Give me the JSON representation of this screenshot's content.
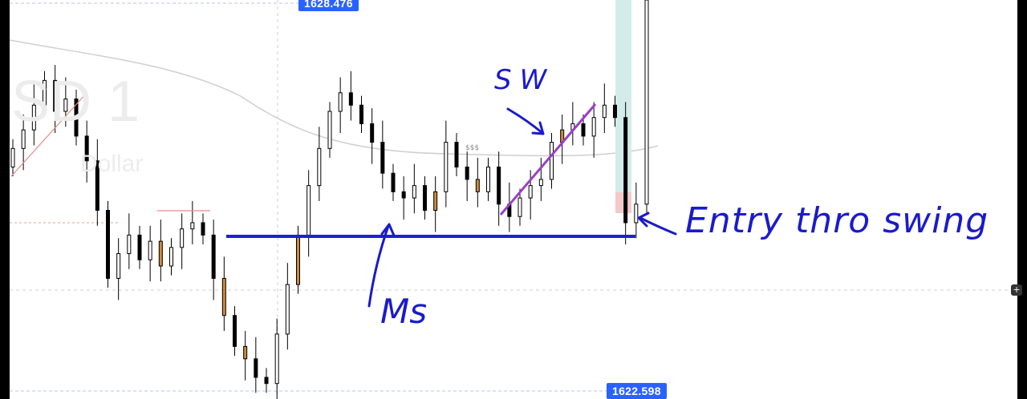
{
  "watermark": {
    "symbol": "SD 1",
    "subtitle": "Dollar"
  },
  "price_labels": {
    "top": "1628.476",
    "bottom": "1622.598"
  },
  "annotations": {
    "sw": "SW",
    "ms": "Ms",
    "entry": "Entry thro swing",
    "liquidity": "$$$"
  },
  "icons": {
    "scale_button": "crosshair-plus-icon"
  },
  "colors": {
    "bull": "#ffffff",
    "bear": "#000000",
    "highlight": "#d08a3a",
    "ms_line": "#1f1fd6",
    "sw_line": "#9b3ec8",
    "ma": "#cfcfcf",
    "ink": "#1a1acc"
  },
  "chart_data": {
    "type": "candlestick",
    "ylim": [
      1622.25,
      1628.7
    ],
    "levels": {
      "market_structure": 1624.88,
      "top_label": 1628.476,
      "bottom_label": 1622.598
    },
    "closes": [
      1626.3,
      1626.6,
      1627.0,
      1627.4,
      1626.9,
      1627.1,
      1626.5,
      1626.1,
      1625.3,
      1624.2,
      1624.6,
      1624.9,
      1624.5,
      1624.8,
      1624.4,
      1624.7,
      1625.0,
      1625.1,
      1624.9,
      1624.2,
      1623.6,
      1623.1,
      1622.9,
      1622.6,
      1622.5,
      1623.3,
      1624.1,
      1624.9,
      1625.7,
      1626.3,
      1626.9,
      1627.2,
      1627.0,
      1626.7,
      1626.4,
      1625.9,
      1625.6,
      1625.5,
      1625.7,
      1625.3,
      1625.6,
      1626.4,
      1626.0,
      1625.8,
      1625.6,
      1626.0,
      1625.4,
      1625.2,
      1625.5,
      1625.7,
      1625.8,
      1626.4,
      1626.6,
      1626.7,
      1626.5,
      1626.8,
      1627.0,
      1626.8,
      1625.1,
      1625.4,
      1628.7
    ]
  }
}
